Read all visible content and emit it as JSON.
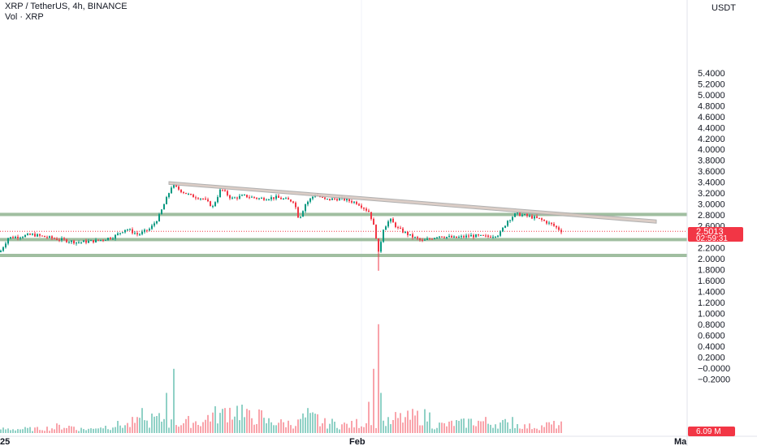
{
  "header": {
    "symbol_line": "XRP / TetherUS, 4h, BINANCE",
    "volume_line": "Vol · XRP"
  },
  "price_axis": {
    "unit_label": "USDT"
  },
  "current_price": {
    "label": "2.5013",
    "countdown": "02:59:31",
    "color": "#f23645"
  },
  "current_volume": {
    "label": "6.09 M",
    "color": "#f23645"
  },
  "colors": {
    "up": "#089981",
    "down": "#f23645",
    "zone": "#8fb38f",
    "trend_fill": "#d9c9c2",
    "trend_stroke": "#a9a9a9"
  },
  "chart_data": {
    "type": "candlestick",
    "price_axis": {
      "ticks": [
        "5.4000",
        "5.2000",
        "5.0000",
        "4.8000",
        "4.6000",
        "4.4000",
        "4.2000",
        "4.0000",
        "3.8000",
        "3.6000",
        "3.4000",
        "3.2000",
        "3.0000",
        "2.8000",
        "2.6000",
        "2.4000",
        "2.2000",
        "2.0000",
        "1.8000",
        "1.6000",
        "1.4000",
        "1.2000",
        "1.0000",
        "0.8000",
        "0.6000",
        "0.4000",
        "0.2000",
        "−0.0000",
        "−0.2000"
      ]
    },
    "x_axis": {
      "tick_labels": [
        "25",
        "Feb",
        "Ma"
      ]
    },
    "price_path": [
      [
        0,
        2.12
      ],
      [
        10,
        2.38
      ],
      [
        40,
        2.44
      ],
      [
        70,
        2.36
      ],
      [
        95,
        2.3
      ],
      [
        120,
        2.33
      ],
      [
        140,
        2.4
      ],
      [
        155,
        2.55
      ],
      [
        170,
        2.44
      ],
      [
        185,
        2.55
      ],
      [
        195,
        2.75
      ],
      [
        205,
        3.1
      ],
      [
        212,
        3.35
      ],
      [
        222,
        3.25
      ],
      [
        235,
        3.15
      ],
      [
        250,
        3.1
      ],
      [
        262,
        2.95
      ],
      [
        272,
        3.28
      ],
      [
        285,
        3.1
      ],
      [
        300,
        3.15
      ],
      [
        320,
        3.1
      ],
      [
        340,
        3.12
      ],
      [
        362,
        3.05
      ],
      [
        368,
        2.72
      ],
      [
        376,
        3.0
      ],
      [
        388,
        3.18
      ],
      [
        400,
        3.08
      ],
      [
        420,
        3.1
      ],
      [
        440,
        3.02
      ],
      [
        455,
        2.85
      ],
      [
        462,
        2.5
      ],
      [
        466,
        2.1
      ],
      [
        472,
        2.55
      ],
      [
        480,
        2.72
      ],
      [
        490,
        2.55
      ],
      [
        505,
        2.42
      ],
      [
        520,
        2.32
      ],
      [
        540,
        2.42
      ],
      [
        560,
        2.38
      ],
      [
        580,
        2.42
      ],
      [
        600,
        2.4
      ],
      [
        615,
        2.45
      ],
      [
        625,
        2.7
      ],
      [
        635,
        2.82
      ],
      [
        650,
        2.78
      ],
      [
        665,
        2.72
      ],
      [
        680,
        2.62
      ],
      [
        692,
        2.5
      ]
    ],
    "volume": {
      "base": [
        5,
        5,
        6,
        8,
        5,
        8,
        10,
        13,
        17,
        12,
        14,
        22,
        28,
        20,
        14,
        12,
        18,
        12,
        10,
        12,
        13,
        18,
        20,
        10,
        12,
        14,
        12,
        10,
        8,
        10
      ],
      "spikes": [
        [
          175,
          0.28
        ],
        [
          205,
          0.45
        ],
        [
          215,
          0.72
        ],
        [
          265,
          0.3
        ],
        [
          380,
          0.28
        ],
        [
          455,
          0.35
        ],
        [
          460,
          0.72
        ],
        [
          465,
          1.22
        ],
        [
          470,
          0.45
        ],
        [
          630,
          0.18
        ]
      ]
    },
    "levels": {
      "resistance_zone": [
        2.78,
        2.84
      ],
      "support_1": 2.35,
      "support_2": 2.06,
      "trendline": {
        "from": [
          3.36,
          3.41
        ],
        "to": [
          2.65,
          2.71
        ]
      },
      "current_price": 2.5013
    }
  }
}
